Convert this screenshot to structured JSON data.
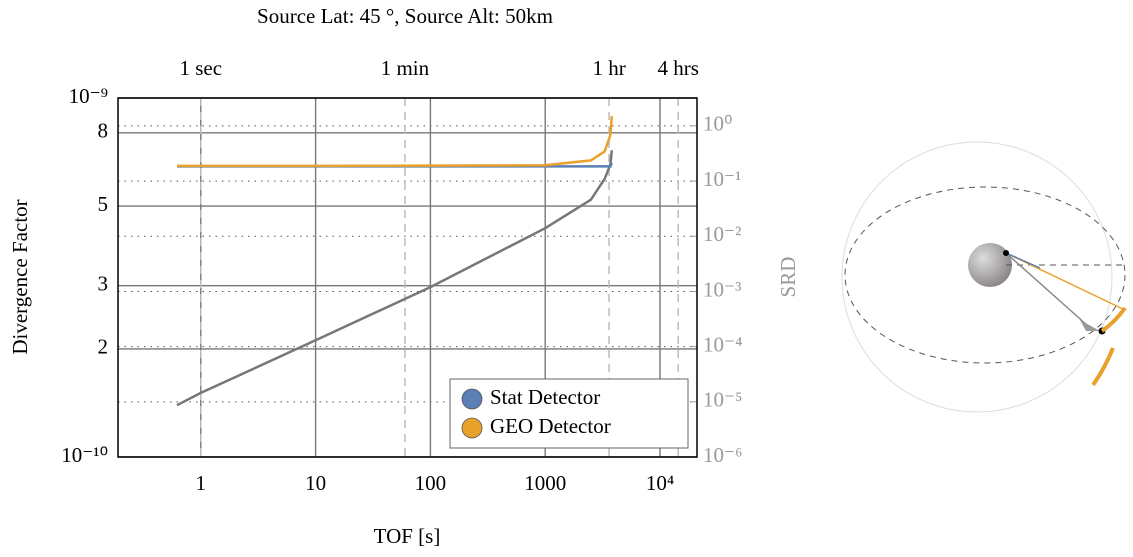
{
  "chart_data": {
    "type": "line",
    "title": "Source Lat: 45 °, Source Alt: 50km",
    "xlabel": "TOF [s]",
    "ylabel": "Divergence Factor",
    "y2label": "SRD",
    "xscale": "log",
    "yscale": "log",
    "y2scale": "log",
    "xlim": [
      0.19,
      21000
    ],
    "ylim": [
      1e-10,
      1e-09
    ],
    "y2lim": [
      1e-06,
      3.2
    ],
    "xticks": [
      1,
      10,
      100,
      1000,
      {
        "value": 10000,
        "label": "10⁴"
      }
    ],
    "x2ticks": [
      {
        "value": 1,
        "label": "1 sec"
      },
      {
        "value": 60,
        "label": "1 min"
      },
      {
        "value": 3600,
        "label": "1 hr"
      },
      {
        "value": 14400,
        "label": "4 hrs"
      }
    ],
    "yticks": [
      {
        "value": 1e-10,
        "label": "10⁻¹⁰"
      },
      {
        "value": 2e-10,
        "label": "2"
      },
      {
        "value": 3e-10,
        "label": "3"
      },
      {
        "value": 5e-10,
        "label": "5"
      },
      {
        "value": 8e-10,
        "label": "8"
      },
      {
        "value": 1e-09,
        "label": "10⁻⁹"
      }
    ],
    "y2ticks": [
      {
        "value": 1e-06,
        "label": "10⁻⁶"
      },
      {
        "value": 1e-05,
        "label": "10⁻⁵"
      },
      {
        "value": 0.0001,
        "label": "10⁻⁴"
      },
      {
        "value": 0.001,
        "label": "10⁻³"
      },
      {
        "value": 0.01,
        "label": "10⁻²"
      },
      {
        "value": 0.1,
        "label": "10⁻¹"
      },
      {
        "value": 1,
        "label": "10⁰"
      }
    ],
    "grid": true,
    "legend": "lower right",
    "x": [
      0.62,
      1,
      10,
      100,
      1000,
      2500,
      3300,
      3700,
      3800
    ],
    "series": [
      {
        "color": "#777777",
        "axis": "y2",
        "values": [
          8.7e-06,
          1.45e-05,
          0.00013,
          0.0012,
          0.014,
          0.046,
          0.11,
          0.2,
          0.36
        ]
      },
      {
        "name": "Stat Detector",
        "color": "#5b7fb5",
        "values": [
          6.45e-10,
          6.45e-10,
          6.45e-10,
          6.45e-10,
          6.45e-10,
          6.45e-10,
          6.45e-10,
          6.45e-10,
          6.6e-10
        ]
      },
      {
        "name": "GEO Detector",
        "color": "#e8a12a",
        "values": [
          6.47e-10,
          6.47e-10,
          6.47e-10,
          6.48e-10,
          6.5e-10,
          6.7e-10,
          7.1e-10,
          7.9e-10,
          8.9e-10
        ]
      }
    ]
  }
}
